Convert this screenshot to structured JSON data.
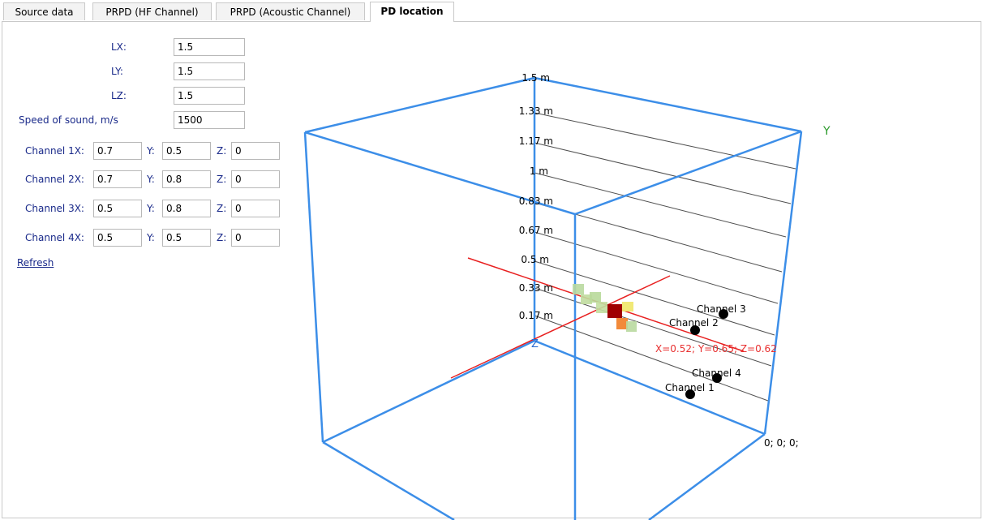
{
  "tabs": [
    {
      "label": "Source data",
      "active": false
    },
    {
      "label": "PRPD (HF Channel)",
      "active": false
    },
    {
      "label": "PRPD (Acoustic Channel)",
      "active": false
    },
    {
      "label": "PD location",
      "active": true
    }
  ],
  "form": {
    "lx_label": "LX:",
    "lx_value": "1.5",
    "ly_label": "LY:",
    "ly_value": "1.5",
    "lz_label": "LZ:",
    "lz_value": "1.5",
    "speed_label": "Speed of sound, m/s",
    "speed_value": "1500",
    "channels": [
      {
        "label": "Channel 1X:",
        "x": "0.7",
        "y_label": "Y:",
        "y": "0.5",
        "z_label": "Z:",
        "z": "0"
      },
      {
        "label": "Channel 2X:",
        "x": "0.7",
        "y_label": "Y:",
        "y": "0.8",
        "z_label": "Z:",
        "z": "0"
      },
      {
        "label": "Channel 3X:",
        "x": "0.5",
        "y_label": "Y:",
        "y": "0.8",
        "z_label": "Z:",
        "z": "0"
      },
      {
        "label": "Channel 4X:",
        "x": "0.5",
        "y_label": "Y:",
        "y": "0.5",
        "z_label": "Z:",
        "z": "0"
      }
    ],
    "refresh_label": "Refresh"
  },
  "viewer": {
    "axis_y_label": "Y",
    "axis_z_label": "Z",
    "origin_label": "0; 0; 0;",
    "ticks": [
      "1.5 m",
      "1.33 m",
      "1.17 m",
      "1 m",
      "0.83 m",
      "0.67 m",
      "0.5 m",
      "0.33 m",
      "0.17 m"
    ],
    "location_label": "X=0.52; Y=0.65; Z=0.62",
    "channel_labels": [
      "Channel 3",
      "Channel 2",
      "Channel 4",
      "Channel 1"
    ],
    "colors": {
      "box": "#3c8ee8",
      "axis": "#e82020",
      "grid": "#505050",
      "y_axis": "#2a9a2a",
      "location": "#e83030"
    }
  }
}
